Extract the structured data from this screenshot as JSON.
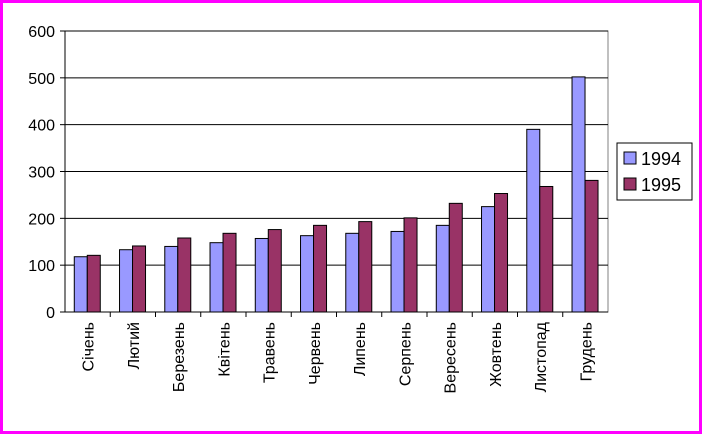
{
  "chart_data": {
    "type": "bar",
    "categories": [
      "Січень",
      "Лютий",
      "Березень",
      "Квітень",
      "Травень",
      "Червень",
      "Липень",
      "Серпень",
      "Вересень",
      "Жовтень",
      "Листопад",
      "Грудень"
    ],
    "series": [
      {
        "name": "1994",
        "color": "#9999ff",
        "values": [
          118,
          133,
          140,
          148,
          157,
          163,
          168,
          172,
          185,
          225,
          390,
          502
        ]
      },
      {
        "name": "1995",
        "color": "#993366",
        "values": [
          121,
          141,
          158,
          168,
          176,
          185,
          193,
          201,
          232,
          253,
          268,
          281
        ]
      }
    ],
    "y_ticks": [
      "0",
      "100",
      "200",
      "300",
      "400",
      "500",
      "600"
    ],
    "ylim": [
      0,
      600
    ],
    "grid": true,
    "legend_position": "right"
  }
}
